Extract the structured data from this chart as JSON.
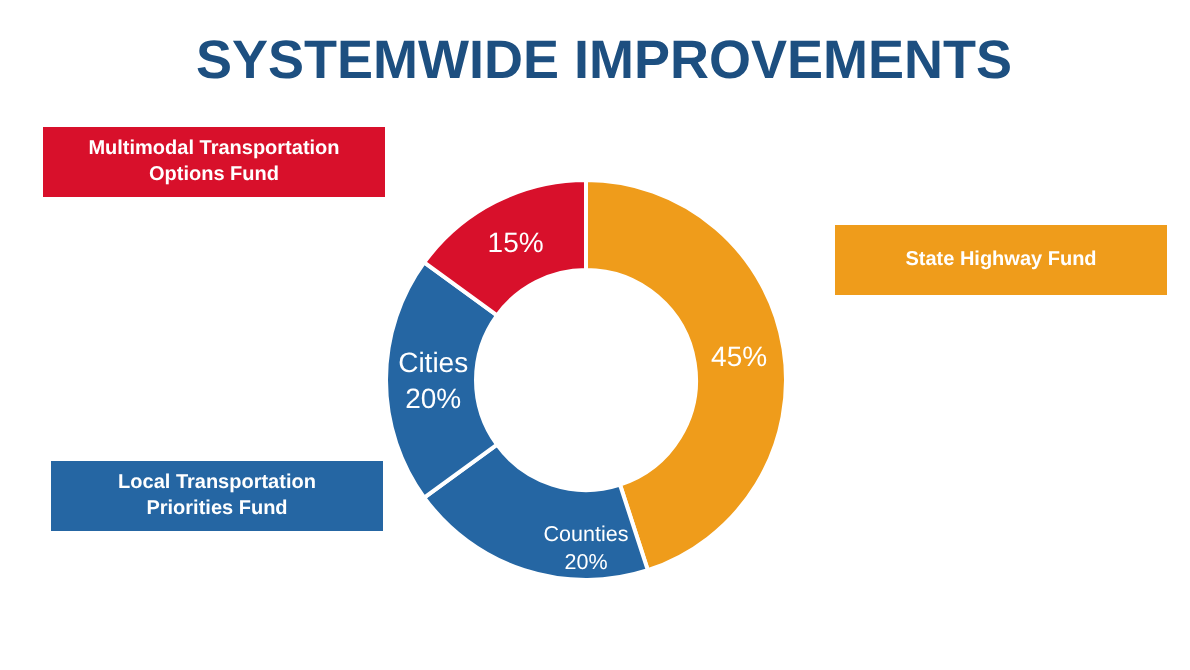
{
  "chart_data": {
    "type": "donut",
    "title": "SYSTEMWIDE IMPROVEMENTS",
    "categories": [
      null,
      "Counties",
      "Cities",
      null
    ],
    "values": [
      45,
      20,
      20,
      15
    ],
    "value_labels": [
      "45%",
      "20%",
      "20%",
      "15%"
    ],
    "colors": [
      "#ef9c1b",
      "#2566a3",
      "#2566a3",
      "#d8102b"
    ],
    "annotations": [
      "Multimodal Transportation\nOptions Fund",
      "State Highway Fund",
      "Local Transportation\nPriorities Fund"
    ],
    "legend": false
  }
}
